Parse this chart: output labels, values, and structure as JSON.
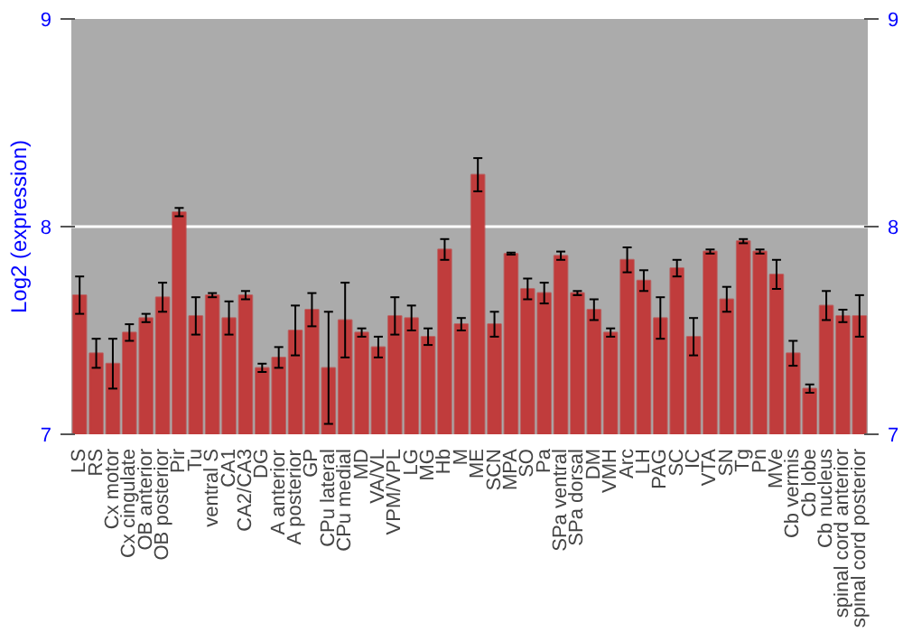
{
  "chart_data": {
    "type": "bar",
    "ylabel": "Log2 (expression)",
    "categories": [
      "LS",
      "RS",
      "Cx motor",
      "Cx cingulate",
      "OB anterior",
      "OB posterior",
      "Pir",
      "Tu",
      "ventral S",
      "CA1",
      "CA2/CA3",
      "DG",
      "A anterior",
      "A posterior",
      "GP",
      "CPu lateral",
      "CPu medial",
      "MD",
      "VA/VL",
      "VPM/VPL",
      "LG",
      "MG",
      "Hb",
      "M",
      "ME",
      "SCN",
      "MPA",
      "SO",
      "Pa",
      "SPa ventral",
      "SPa dorsal",
      "DM",
      "VMH",
      "Arc",
      "LH",
      "PAG",
      "SC",
      "IC",
      "VTA",
      "SN",
      "Tg",
      "Pn",
      "MVe",
      "Cb vermis",
      "Cb lobe",
      "Cb nucleus",
      "spinal cord anterior",
      "spinal cord posterior"
    ],
    "values": [
      7.67,
      7.39,
      7.34,
      7.49,
      7.56,
      7.66,
      8.07,
      7.57,
      7.67,
      7.56,
      7.67,
      7.32,
      7.37,
      7.5,
      7.6,
      7.32,
      7.55,
      7.49,
      7.42,
      7.57,
      7.56,
      7.47,
      7.89,
      7.53,
      8.25,
      7.53,
      7.87,
      7.7,
      7.68,
      7.86,
      7.68,
      7.6,
      7.49,
      7.84,
      7.74,
      7.56,
      7.8,
      7.47,
      7.88,
      7.65,
      7.93,
      7.88,
      7.77,
      7.39,
      7.22,
      7.62,
      7.57,
      7.57
    ],
    "errors": [
      0.09,
      0.07,
      0.12,
      0.04,
      0.02,
      0.07,
      0.02,
      0.09,
      0.01,
      0.08,
      0.02,
      0.02,
      0.05,
      0.12,
      0.08,
      0.27,
      0.18,
      0.02,
      0.05,
      0.09,
      0.06,
      0.04,
      0.05,
      0.03,
      0.08,
      0.06,
      0.005,
      0.05,
      0.05,
      0.02,
      0.01,
      0.05,
      0.02,
      0.06,
      0.05,
      0.1,
      0.04,
      0.09,
      0.01,
      0.06,
      0.01,
      0.01,
      0.07,
      0.06,
      0.02,
      0.07,
      0.03,
      0.1
    ],
    "color": "#c03c3c",
    "ylim": [
      7,
      9
    ],
    "yticks": [
      7,
      8,
      9
    ],
    "y2lim": [
      7,
      9
    ],
    "y2ticks": [
      7,
      8,
      9
    ],
    "grid": "y"
  }
}
